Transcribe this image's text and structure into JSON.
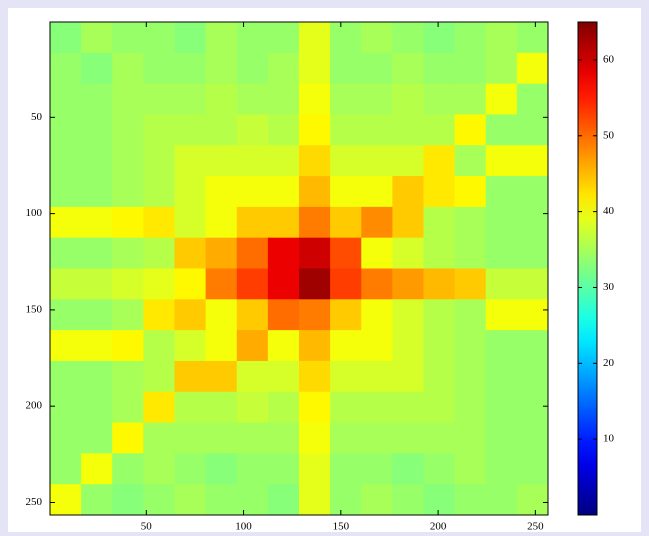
{
  "chart_data": {
    "type": "heatmap",
    "colormap": "jet",
    "y_reversed": true,
    "x": [
      8.5,
      24.5,
      40.5,
      56.5,
      72.5,
      88.5,
      104.5,
      120.5,
      136.5,
      152.5,
      168.5,
      184.5,
      200.5,
      216.5,
      232.5,
      248.5
    ],
    "y": [
      8.5,
      24.5,
      40.5,
      56.5,
      72.5,
      88.5,
      104.5,
      120.5,
      136.5,
      152.5,
      168.5,
      184.5,
      200.5,
      216.5,
      232.5,
      248.5
    ],
    "z": [
      [
        33,
        35,
        34,
        34,
        33,
        35,
        34,
        34,
        39,
        34,
        35,
        34,
        33,
        34,
        35,
        34
      ],
      [
        34,
        33,
        35,
        34,
        34,
        35,
        34,
        35,
        39,
        34,
        34,
        35,
        34,
        34,
        35,
        40
      ],
      [
        34,
        34,
        35,
        35,
        35,
        36,
        35,
        35,
        40,
        35,
        35,
        36,
        35,
        35,
        40,
        34
      ],
      [
        34,
        34,
        35,
        36,
        36,
        36,
        37,
        36,
        41,
        36,
        36,
        36,
        36,
        41,
        34,
        34
      ],
      [
        34,
        34,
        35,
        36,
        38,
        38,
        38,
        38,
        43,
        38,
        38,
        38,
        42,
        35,
        40,
        40
      ],
      [
        34,
        34,
        35,
        36,
        38,
        40,
        40,
        40,
        45,
        40,
        40,
        44,
        42,
        41,
        34,
        34
      ],
      [
        40,
        40,
        41,
        42,
        38,
        40,
        44,
        44,
        49,
        44,
        48,
        44,
        36,
        35,
        34,
        34
      ],
      [
        34,
        34,
        35,
        36,
        44,
        46,
        50,
        58,
        60,
        52,
        40,
        38,
        36,
        35,
        34,
        34
      ],
      [
        37,
        37,
        38,
        39,
        41,
        49,
        53,
        58,
        63,
        53,
        49,
        47,
        45,
        44,
        37,
        37
      ],
      [
        34,
        34,
        35,
        42,
        44,
        40,
        44,
        50,
        49,
        44,
        40,
        38,
        36,
        35,
        40,
        40
      ],
      [
        40,
        40,
        41,
        36,
        38,
        40,
        46,
        40,
        45,
        40,
        40,
        38,
        36,
        35,
        34,
        34
      ],
      [
        34,
        34,
        35,
        36,
        44,
        44,
        38,
        38,
        43,
        38,
        38,
        38,
        36,
        35,
        34,
        34
      ],
      [
        34,
        34,
        35,
        42,
        36,
        36,
        37,
        36,
        41,
        36,
        36,
        36,
        36,
        35,
        34,
        34
      ],
      [
        34,
        34,
        41,
        35,
        35,
        35,
        35,
        35,
        40,
        35,
        35,
        35,
        35,
        35,
        34,
        34
      ],
      [
        34,
        40,
        34,
        35,
        34,
        33,
        34,
        34,
        39,
        34,
        34,
        33,
        34,
        35,
        34,
        34
      ],
      [
        40,
        34,
        33,
        34,
        35,
        34,
        34,
        33,
        39,
        34,
        35,
        34,
        33,
        34,
        34,
        35
      ]
    ],
    "xlim": [
      0.5,
      256.5
    ],
    "ylim": [
      0.5,
      256.5
    ],
    "xticks": [
      50,
      100,
      150,
      200,
      250
    ],
    "yticks": [
      50,
      100,
      150,
      200,
      250
    ],
    "clim": [
      0,
      65
    ],
    "cticks": [
      10,
      20,
      30,
      40,
      50,
      60
    ]
  }
}
